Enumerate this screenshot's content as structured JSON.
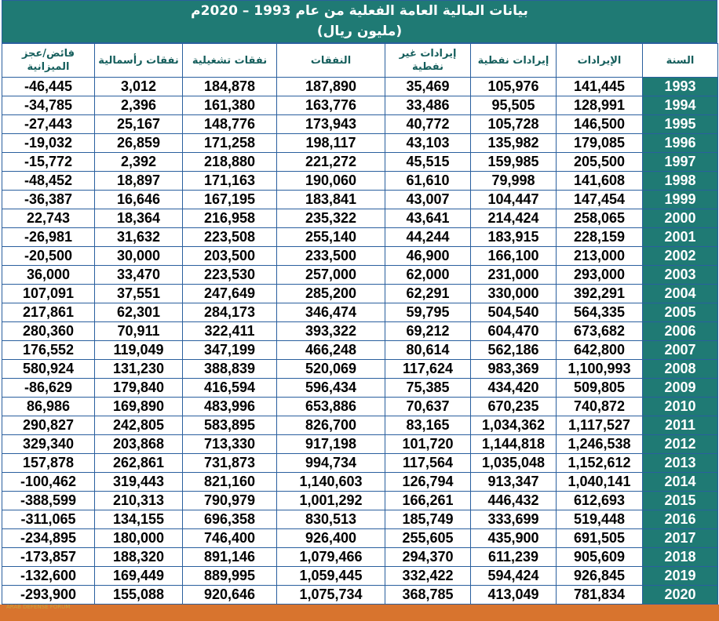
{
  "header": {
    "title": "بيانات المالية العامة الفعلية من عام 1993 – 2020م",
    "subtitle": "(مليون ريال)"
  },
  "table": {
    "columns": [
      "السنة",
      "الإيرادات",
      "إيرادات نفطية",
      "إيرادات غير نفطية",
      "النفقات",
      "نفقات تشغيلية",
      "نفقات رأسمالية",
      "فائض/عجز الميزانية"
    ],
    "rows": [
      [
        "1993",
        "141,445",
        "105,976",
        "35,469",
        "187,890",
        "184,878",
        "3,012",
        "-46,445"
      ],
      [
        "1994",
        "128,991",
        "95,505",
        "33,486",
        "163,776",
        "161,380",
        "2,396",
        "-34,785"
      ],
      [
        "1995",
        "146,500",
        "105,728",
        "40,772",
        "173,943",
        "148,776",
        "25,167",
        "-27,443"
      ],
      [
        "1996",
        "179,085",
        "135,982",
        "43,103",
        "198,117",
        "171,258",
        "26,859",
        "-19,032"
      ],
      [
        "1997",
        "205,500",
        "159,985",
        "45,515",
        "221,272",
        "218,880",
        "2,392",
        "-15,772"
      ],
      [
        "1998",
        "141,608",
        "79,998",
        "61,610",
        "190,060",
        "171,163",
        "18,897",
        "-48,452"
      ],
      [
        "1999",
        "147,454",
        "104,447",
        "43,007",
        "183,841",
        "167,195",
        "16,646",
        "-36,387"
      ],
      [
        "2000",
        "258,065",
        "214,424",
        "43,641",
        "235,322",
        "216,958",
        "18,364",
        "22,743"
      ],
      [
        "2001",
        "228,159",
        "183,915",
        "44,244",
        "255,140",
        "223,508",
        "31,632",
        "-26,981"
      ],
      [
        "2002",
        "213,000",
        "166,100",
        "46,900",
        "233,500",
        "203,500",
        "30,000",
        "-20,500"
      ],
      [
        "2003",
        "293,000",
        "231,000",
        "62,000",
        "257,000",
        "223,530",
        "33,470",
        "36,000"
      ],
      [
        "2004",
        "392,291",
        "330,000",
        "62,291",
        "285,200",
        "247,649",
        "37,551",
        "107,091"
      ],
      [
        "2005",
        "564,335",
        "504,540",
        "59,795",
        "346,474",
        "284,173",
        "62,301",
        "217,861"
      ],
      [
        "2006",
        "673,682",
        "604,470",
        "69,212",
        "393,322",
        "322,411",
        "70,911",
        "280,360"
      ],
      [
        "2007",
        "642,800",
        "562,186",
        "80,614",
        "466,248",
        "347,199",
        "119,049",
        "176,552"
      ],
      [
        "2008",
        "1,100,993",
        "983,369",
        "117,624",
        "520,069",
        "388,839",
        "131,230",
        "580,924"
      ],
      [
        "2009",
        "509,805",
        "434,420",
        "75,385",
        "596,434",
        "416,594",
        "179,840",
        "-86,629"
      ],
      [
        "2010",
        "740,872",
        "670,235",
        "70,637",
        "653,886",
        "483,996",
        "169,890",
        "86,986"
      ],
      [
        "2011",
        "1,117,527",
        "1,034,362",
        "83,165",
        "826,700",
        "583,895",
        "242,805",
        "290,827"
      ],
      [
        "2012",
        "1,246,538",
        "1,144,818",
        "101,720",
        "917,198",
        "713,330",
        "203,868",
        "329,340"
      ],
      [
        "2013",
        "1,152,612",
        "1,035,048",
        "117,564",
        "994,734",
        "731,873",
        "262,861",
        "157,878"
      ],
      [
        "2014",
        "1,040,141",
        "913,347",
        "126,794",
        "1,140,603",
        "821,160",
        "319,443",
        "-100,462"
      ],
      [
        "2015",
        "612,693",
        "446,432",
        "166,261",
        "1,001,292",
        "790,979",
        "210,313",
        "-388,599"
      ],
      [
        "2016",
        "519,448",
        "333,699",
        "185,749",
        "830,513",
        "696,358",
        "134,155",
        "-311,065"
      ],
      [
        "2017",
        "691,505",
        "435,900",
        "255,605",
        "926,400",
        "746,400",
        "180,000",
        "-234,895"
      ],
      [
        "2018",
        "905,609",
        "611,239",
        "294,370",
        "1,079,466",
        "891,146",
        "188,320",
        "-173,857"
      ],
      [
        "2019",
        "926,845",
        "594,424",
        "332,422",
        "1,059,445",
        "889,995",
        "169,449",
        "-132,600"
      ],
      [
        "2020",
        "781,834",
        "413,049",
        "368,785",
        "1,075,734",
        "920,646",
        "155,088",
        "-293,900"
      ]
    ]
  },
  "watermark": "ARAB DEFENSE FORUM"
}
